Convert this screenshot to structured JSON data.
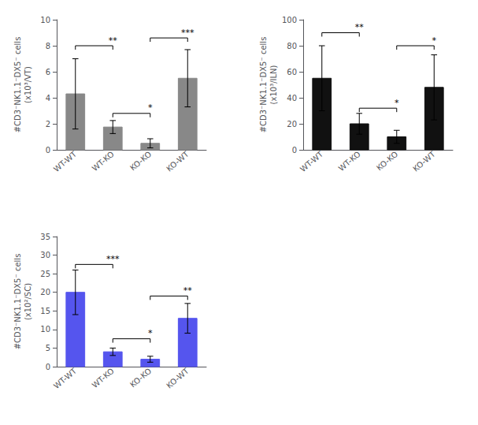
{
  "chart_data": [
    {
      "type": "bar",
      "categories": [
        "WT-WT",
        "WT-KO",
        "KO-KO",
        "KO-WT"
      ],
      "values": [
        4.3,
        1.75,
        0.5,
        5.5
      ],
      "errors": [
        2.7,
        0.5,
        0.35,
        2.2
      ],
      "ylabel": "#CD3⁻NK1.1⁻DX5⁻ cells\n(x10³/VT)",
      "ylim": [
        0,
        10
      ],
      "yticks": [
        0,
        2,
        4,
        6,
        8,
        10
      ],
      "color": "#888888",
      "grid": false,
      "annotations": [
        {
          "text": "**",
          "x": [
            "WT-WT",
            "WT-KO"
          ],
          "y": 8.0
        },
        {
          "text": "*",
          "x": [
            "WT-KO",
            "KO-KO"
          ],
          "y": 2.8
        },
        {
          "text": "***",
          "x": [
            "KO-KO",
            "KO-WT"
          ],
          "y": 8.6
        }
      ]
    },
    {
      "type": "bar",
      "categories": [
        "WT-WT",
        "WT-KO",
        "KO-KO",
        "KO-WT"
      ],
      "values": [
        55,
        20,
        10,
        48
      ],
      "errors": [
        25,
        8,
        5,
        25
      ],
      "ylabel": "#CD3⁻NK1.1⁻DX5⁻ cells\n(x10³/ILN)",
      "ylim": [
        0,
        100
      ],
      "yticks": [
        0,
        20,
        40,
        60,
        80,
        100
      ],
      "color": "#111111",
      "grid": false,
      "annotations": [
        {
          "text": "**",
          "x": [
            "WT-WT",
            "WT-KO"
          ],
          "y": 90
        },
        {
          "text": "*",
          "x": [
            "WT-KO",
            "KO-KO"
          ],
          "y": 32
        },
        {
          "text": "*",
          "x": [
            "KO-KO",
            "KO-WT"
          ],
          "y": 80
        }
      ]
    },
    {
      "type": "bar",
      "categories": [
        "WT-WT",
        "WT-KO",
        "KO-KO",
        "KO-WT"
      ],
      "values": [
        20,
        4,
        2,
        13
      ],
      "errors": [
        6,
        1,
        0.8,
        4
      ],
      "ylabel": "#CD3⁻NK1.1⁻DX5⁻ cells\n(x10²/SC)",
      "ylim": [
        0,
        35
      ],
      "yticks": [
        0,
        5,
        10,
        15,
        20,
        25,
        30,
        35
      ],
      "color": "#5555ee",
      "grid": false,
      "annotations": [
        {
          "text": "***",
          "x": [
            "WT-WT",
            "WT-KO"
          ],
          "y": 27.5
        },
        {
          "text": "*",
          "x": [
            "WT-KO",
            "KO-KO"
          ],
          "y": 7.5
        },
        {
          "text": "**",
          "x": [
            "KO-KO",
            "KO-WT"
          ],
          "y": 19
        }
      ]
    }
  ]
}
